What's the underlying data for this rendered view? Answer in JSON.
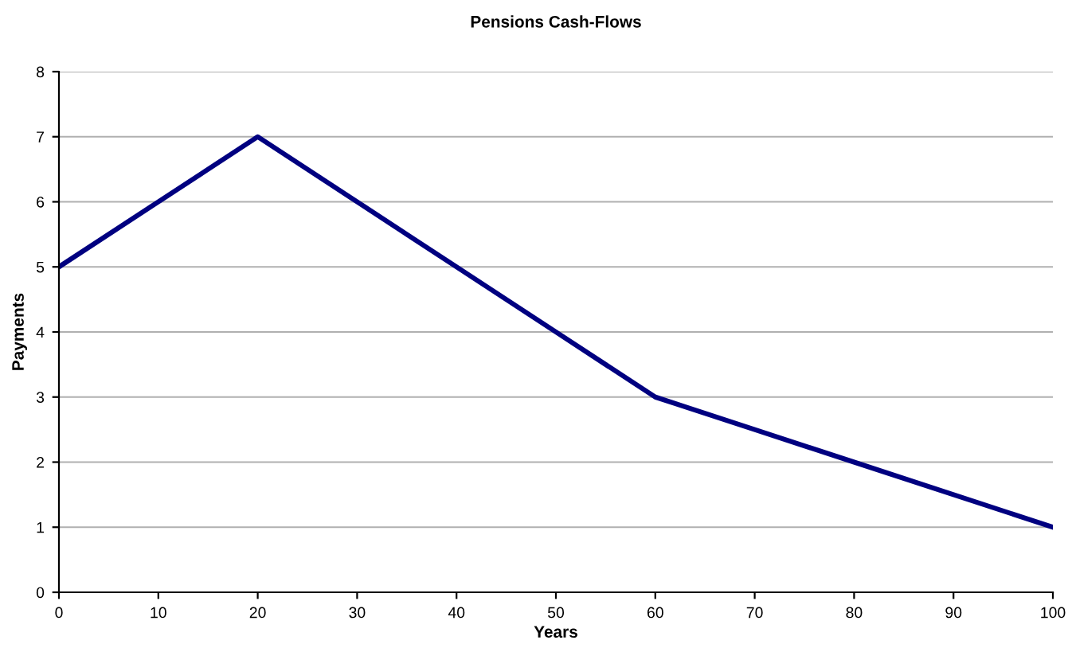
{
  "chart_data": {
    "type": "line",
    "title": "Pensions Cash-Flows",
    "xlabel": "Years",
    "ylabel": "Payments",
    "x": [
      0,
      10,
      20,
      30,
      40,
      50,
      60,
      70,
      80,
      90,
      100
    ],
    "series": [
      {
        "color": "#000080",
        "values": [
          5,
          6,
          7,
          6,
          5,
          4,
          3,
          2.5,
          2,
          1.5,
          1
        ]
      }
    ],
    "xlim": [
      0,
      100
    ],
    "xticks": [
      0,
      10,
      20,
      30,
      40,
      50,
      60,
      70,
      80,
      90,
      100
    ],
    "ylim": [
      0,
      8
    ],
    "yticks": [
      0,
      1,
      2,
      3,
      4,
      5,
      6,
      7,
      8
    ],
    "grid": "y",
    "legend": false,
    "marker": "none",
    "line_style": "solid"
  }
}
